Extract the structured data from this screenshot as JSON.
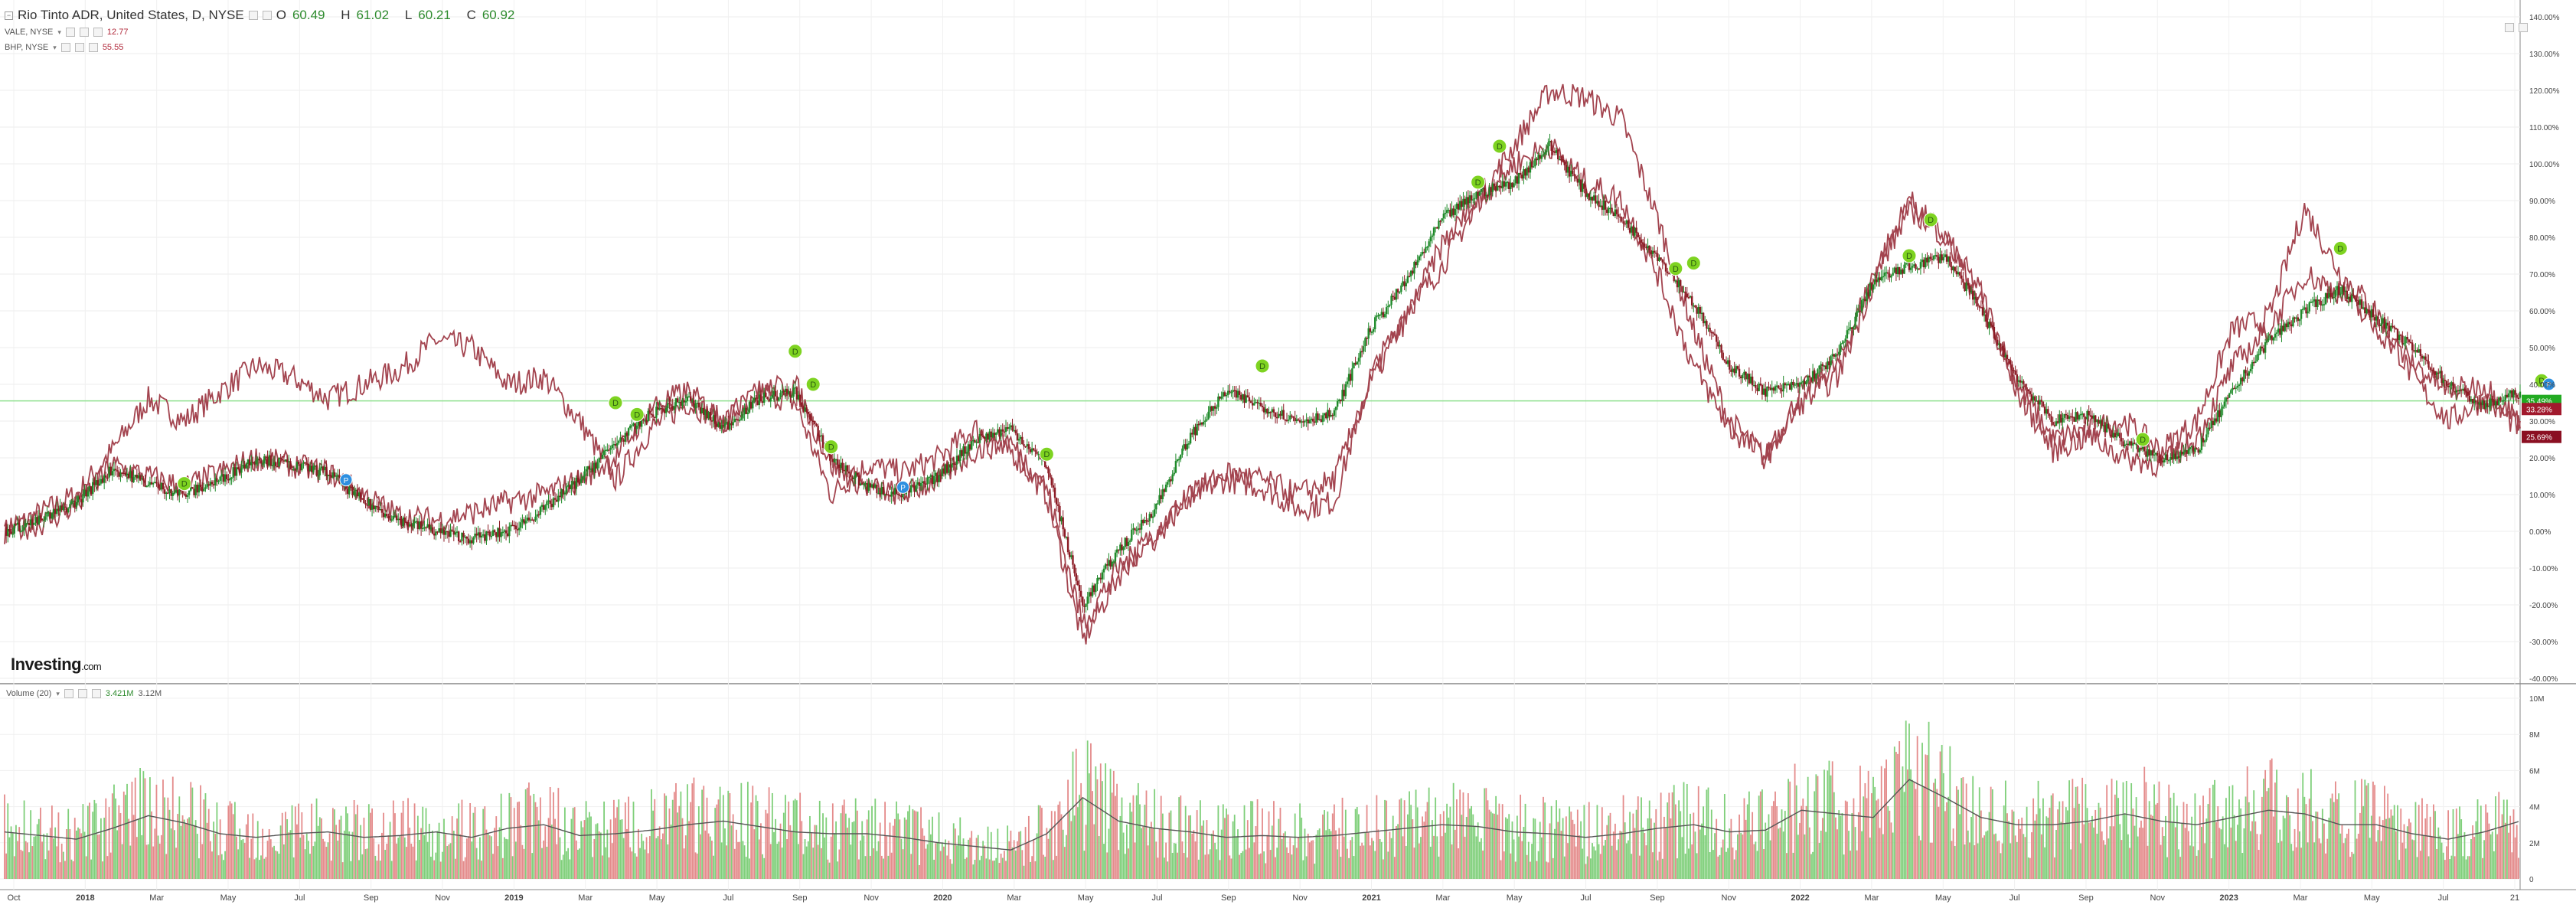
{
  "legend": {
    "main_symbol": "Rio Tinto ADR, United States, D, NYSE",
    "ohlc": [
      {
        "label": "O",
        "value": "60.49"
      },
      {
        "label": "H",
        "value": "61.02"
      },
      {
        "label": "L",
        "value": "60.21"
      },
      {
        "label": "C",
        "value": "60.92"
      }
    ],
    "compare": [
      {
        "symbol": "VALE, NYSE",
        "value": "12.77"
      },
      {
        "symbol": "BHP, NYSE",
        "value": "55.55"
      }
    ]
  },
  "brand": {
    "name": "Investing",
    "suffix": ".com"
  },
  "volume": {
    "label": "Volume (20)",
    "value1": "3.421M",
    "value2": "3.12M"
  },
  "price_axis": {
    "labels": [
      "140.00%",
      "130.00%",
      "120.00%",
      "110.00%",
      "100.00%",
      "90.00%",
      "80.00%",
      "70.00%",
      "60.00%",
      "50.00%",
      "40.00%",
      "30.00%",
      "20.00%",
      "10.00%",
      "0.00%",
      "-10.00%",
      "-20.00%",
      "-30.00%",
      "-40.00%"
    ],
    "badges": [
      {
        "text": "35.49%",
        "color": "#22aa22",
        "value": 35.49
      },
      {
        "text": "33.28%",
        "color": "#a1192d",
        "value": 33.28
      },
      {
        "text": "25.69%",
        "color": "#8b0f22",
        "value": 25.69
      }
    ]
  },
  "volume_axis": {
    "labels": [
      "10M",
      "8M",
      "6M",
      "4M",
      "2M",
      "0"
    ]
  },
  "time_axis": [
    {
      "text": "Oct",
      "year": false
    },
    {
      "text": "2018",
      "year": true
    },
    {
      "text": "Mar",
      "year": false
    },
    {
      "text": "May",
      "year": false
    },
    {
      "text": "Jul",
      "year": false
    },
    {
      "text": "Sep",
      "year": false
    },
    {
      "text": "Nov",
      "year": false
    },
    {
      "text": "2019",
      "year": true
    },
    {
      "text": "Mar",
      "year": false
    },
    {
      "text": "May",
      "year": false
    },
    {
      "text": "Jul",
      "year": false
    },
    {
      "text": "Sep",
      "year": false
    },
    {
      "text": "Nov",
      "year": false
    },
    {
      "text": "2020",
      "year": true
    },
    {
      "text": "Mar",
      "year": false
    },
    {
      "text": "May",
      "year": false
    },
    {
      "text": "Jul",
      "year": false
    },
    {
      "text": "Sep",
      "year": false
    },
    {
      "text": "Nov",
      "year": false
    },
    {
      "text": "2021",
      "year": true
    },
    {
      "text": "Mar",
      "year": false
    },
    {
      "text": "May",
      "year": false
    },
    {
      "text": "Jul",
      "year": false
    },
    {
      "text": "Sep",
      "year": false
    },
    {
      "text": "Nov",
      "year": false
    },
    {
      "text": "2022",
      "year": true
    },
    {
      "text": "Mar",
      "year": false
    },
    {
      "text": "May",
      "year": false
    },
    {
      "text": "Jul",
      "year": false
    },
    {
      "text": "Sep",
      "year": false
    },
    {
      "text": "Nov",
      "year": false
    },
    {
      "text": "2023",
      "year": true
    },
    {
      "text": "Mar",
      "year": false
    },
    {
      "text": "May",
      "year": false
    },
    {
      "text": "Jul",
      "year": false
    },
    {
      "text": "21",
      "year": false
    }
  ],
  "colors": {
    "up": "#1f8a2a",
    "down": "#8b1a24",
    "compare_line": "#a3444f",
    "hline": "#8fe08f",
    "vol_up": "#7fcf7a",
    "vol_down": "#e48b8b",
    "dividend": "#7ed321",
    "split": "#2d8fe0"
  },
  "markers": {
    "dividend": "D",
    "split": "P"
  },
  "chart_data": {
    "type": "line",
    "y_unit": "%",
    "ylim": [
      -40,
      140
    ],
    "volume_ylim": [
      0,
      10000000
    ],
    "horizontal_line": 35.49,
    "x": [
      "2017-10",
      "2017-11",
      "2017-12",
      "2018-01",
      "2018-02",
      "2018-03",
      "2018-04",
      "2018-05",
      "2018-06",
      "2018-07",
      "2018-08",
      "2018-09",
      "2018-10",
      "2018-11",
      "2018-12",
      "2019-01",
      "2019-02",
      "2019-03",
      "2019-04",
      "2019-05",
      "2019-06",
      "2019-07",
      "2019-08",
      "2019-09",
      "2019-10",
      "2019-11",
      "2019-12",
      "2020-01",
      "2020-02",
      "2020-03",
      "2020-04",
      "2020-05",
      "2020-06",
      "2020-07",
      "2020-08",
      "2020-09",
      "2020-10",
      "2020-11",
      "2020-12",
      "2021-01",
      "2021-02",
      "2021-03",
      "2021-04",
      "2021-05",
      "2021-06",
      "2021-07",
      "2021-08",
      "2021-09",
      "2021-10",
      "2021-11",
      "2021-12",
      "2022-01",
      "2022-02",
      "2022-03",
      "2022-04",
      "2022-05",
      "2022-06",
      "2022-07",
      "2022-08",
      "2022-09",
      "2022-10",
      "2022-11",
      "2022-12",
      "2023-01",
      "2023-02",
      "2023-03",
      "2023-04",
      "2023-05",
      "2023-06",
      "2023-07",
      "2023-08"
    ],
    "series": [
      {
        "name": "Rio Tinto ADR",
        "values": [
          0,
          3,
          8,
          17,
          13,
          10,
          14,
          20,
          18,
          16,
          8,
          3,
          0,
          -2,
          0,
          6,
          14,
          24,
          32,
          36,
          28,
          36,
          38,
          20,
          12,
          10,
          15,
          25,
          28,
          18,
          -20,
          -5,
          6,
          26,
          38,
          34,
          30,
          32,
          55,
          68,
          85,
          92,
          95,
          105,
          92,
          85,
          75,
          62,
          45,
          38,
          40,
          48,
          68,
          72,
          75,
          60,
          42,
          30,
          32,
          24,
          20,
          22,
          38,
          52,
          60,
          66,
          58,
          50,
          40,
          34,
          38
        ]
      },
      {
        "name": "VALE",
        "values": [
          0,
          5,
          10,
          22,
          36,
          30,
          38,
          45,
          42,
          36,
          40,
          44,
          52,
          50,
          40,
          42,
          30,
          14,
          28,
          35,
          30,
          38,
          35,
          10,
          18,
          16,
          20,
          28,
          22,
          10,
          -30,
          -12,
          0,
          10,
          14,
          12,
          6,
          8,
          42,
          60,
          72,
          90,
          105,
          120,
          118,
          112,
          85,
          55,
          30,
          20,
          38,
          45,
          70,
          90,
          80,
          65,
          40,
          25,
          28,
          30,
          22,
          30,
          55,
          58,
          88,
          70,
          60,
          42,
          30,
          36,
          28
        ]
      },
      {
        "name": "BHP",
        "values": [
          0,
          2,
          7,
          18,
          15,
          12,
          16,
          20,
          18,
          16,
          10,
          4,
          3,
          5,
          8,
          10,
          14,
          20,
          34,
          38,
          30,
          38,
          40,
          18,
          12,
          10,
          14,
          22,
          24,
          12,
          -25,
          -10,
          -2,
          10,
          16,
          14,
          10,
          14,
          40,
          58,
          78,
          90,
          100,
          105,
          95,
          90,
          70,
          45,
          28,
          20,
          35,
          42,
          68,
          88,
          80,
          62,
          38,
          22,
          26,
          20,
          18,
          25,
          45,
          55,
          70,
          65,
          55,
          46,
          38,
          40,
          30
        ]
      }
    ],
    "volume_ma": [
      2.6,
      2.4,
      2.2,
      2.8,
      3.5,
      3.1,
      2.5,
      2.3,
      2.5,
      2.6,
      2.3,
      2.4,
      2.6,
      2.3,
      2.8,
      3.0,
      2.4,
      2.5,
      2.7,
      3.0,
      3.2,
      2.9,
      2.6,
      2.5,
      2.5,
      2.3,
      2.0,
      1.8,
      1.6,
      2.5,
      4.5,
      3.2,
      2.8,
      2.6,
      2.3,
      2.4,
      2.3,
      2.4,
      2.6,
      2.8,
      3.0,
      2.9,
      2.6,
      2.5,
      2.3,
      2.5,
      2.8,
      3.0,
      2.6,
      2.7,
      3.8,
      3.6,
      3.4,
      5.5,
      4.5,
      3.4,
      3.0,
      3.0,
      3.2,
      3.6,
      3.2,
      3.0,
      3.4,
      3.8,
      3.6,
      3.0,
      3.0,
      2.5,
      2.2,
      2.6,
      3.2
    ]
  }
}
